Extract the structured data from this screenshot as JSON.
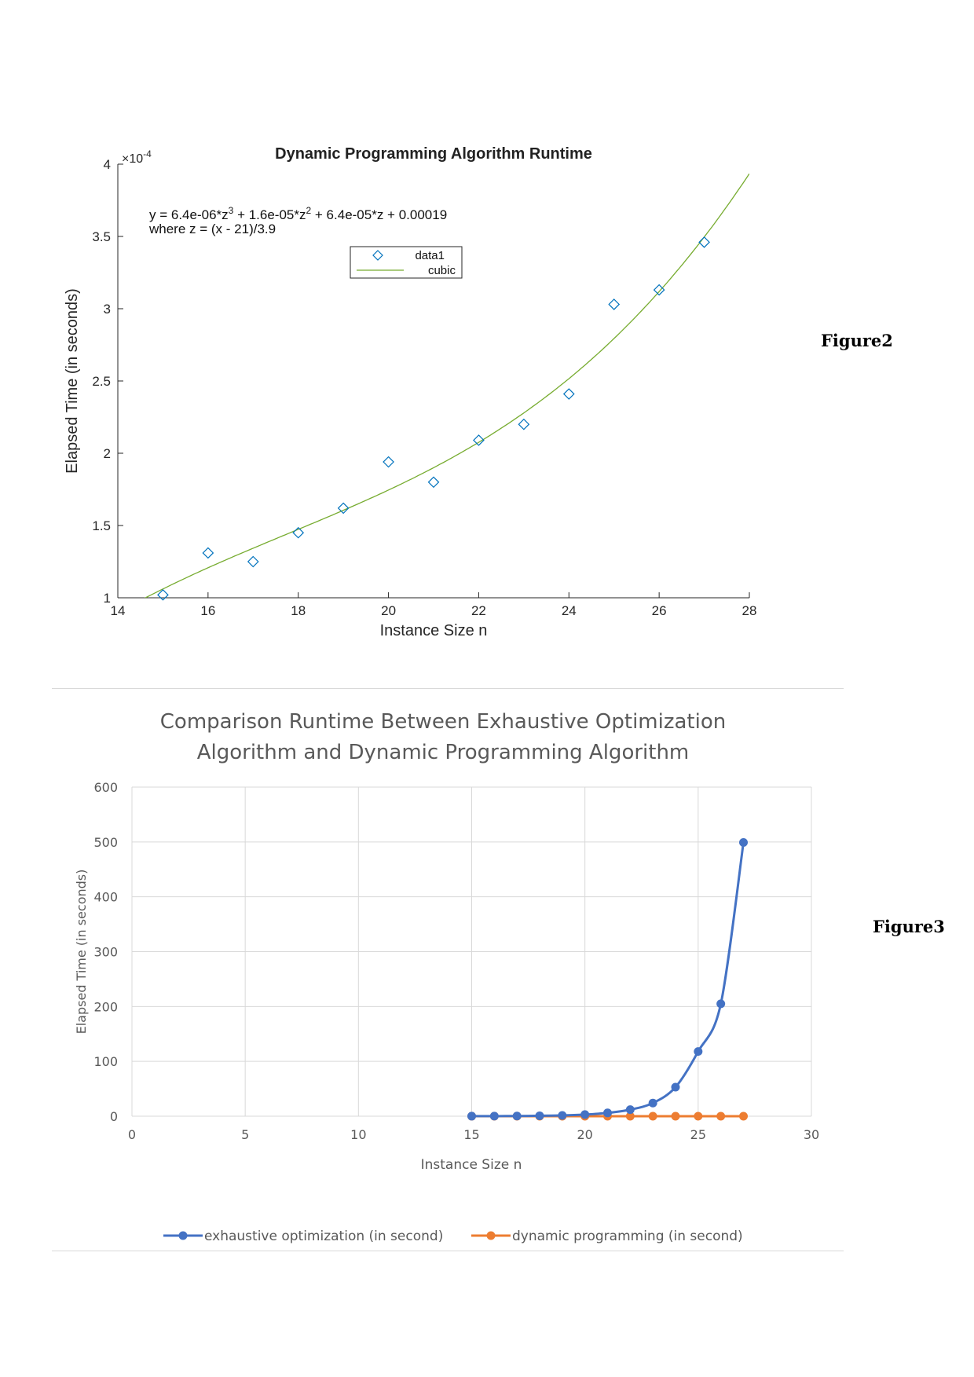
{
  "figure_labels": [
    "Figure2",
    "Figure3"
  ],
  "chart_data": [
    {
      "type": "scatter",
      "title": "Dynamic Programming Algorithm Runtime",
      "xlabel": "Instance Size n",
      "ylabel": "Elapsed Time (in seconds)",
      "exponent_label": "×10",
      "exponent_sup": "-4",
      "xlim": [
        14,
        28
      ],
      "ylim": [
        1,
        4
      ],
      "x_ticks": [
        "14",
        "16",
        "18",
        "20",
        "22",
        "24",
        "26",
        "28"
      ],
      "y_ticks": [
        "1",
        "1.5",
        "2",
        "2.5",
        "3",
        "3.5",
        "4"
      ],
      "equation": {
        "parts": [
          "y = 6.4e-06*z",
          "3",
          " + 1.6e-05*z",
          "2",
          " + 6.4e-05*z + 0.00019"
        ],
        "line2": "where z = (x - 21)/3.9"
      },
      "fit": {
        "name": "cubic",
        "a": 0.064,
        "b": 0.16,
        "c": 0.64,
        "d": 1.9,
        "center": 21,
        "scale": 3.9
      },
      "series": [
        {
          "name": "data1",
          "points": [
            [
              15,
              1.02
            ],
            [
              16,
              1.31
            ],
            [
              17,
              1.25
            ],
            [
              18,
              1.45
            ],
            [
              19,
              1.62
            ],
            [
              20,
              1.94
            ],
            [
              21,
              1.8
            ],
            [
              22,
              2.09
            ],
            [
              23,
              2.2
            ],
            [
              24,
              2.41
            ],
            [
              25,
              3.03
            ],
            [
              26,
              3.13
            ],
            [
              27,
              3.46
            ]
          ]
        }
      ],
      "grid": false,
      "legend_position": "top"
    },
    {
      "type": "line",
      "title_lines": [
        "Comparison Runtime Between Exhaustive Optimization",
        "Algorithm and Dynamic Programming Algorithm"
      ],
      "xlabel": "Instance Size n",
      "ylabel": "Elapsed Time (in seconds)",
      "xlim": [
        0,
        30
      ],
      "ylim": [
        0,
        600
      ],
      "x_ticks": [
        "0",
        "5",
        "10",
        "15",
        "20",
        "25",
        "30"
      ],
      "y_ticks": [
        "0",
        "100",
        "200",
        "300",
        "400",
        "500",
        "600"
      ],
      "grid": true,
      "legend_position": "bottom",
      "series": [
        {
          "name": "exhaustive optimization (in second)",
          "color": "#4472c4",
          "x": [
            15,
            16,
            17,
            18,
            19,
            20,
            21,
            22,
            23,
            24,
            25,
            26,
            27
          ],
          "y": [
            0.1,
            0.2,
            0.4,
            0.8,
            1.5,
            3,
            6,
            12,
            24,
            53,
            118,
            205,
            499
          ]
        },
        {
          "name": "dynamic programming (in second)",
          "color": "#ed7d31",
          "x": [
            15,
            16,
            17,
            18,
            19,
            20,
            21,
            22,
            23,
            24,
            25,
            26,
            27
          ],
          "y": [
            0,
            0,
            0,
            0,
            0,
            0,
            0,
            0,
            0,
            0,
            0,
            0,
            0
          ]
        }
      ]
    }
  ]
}
